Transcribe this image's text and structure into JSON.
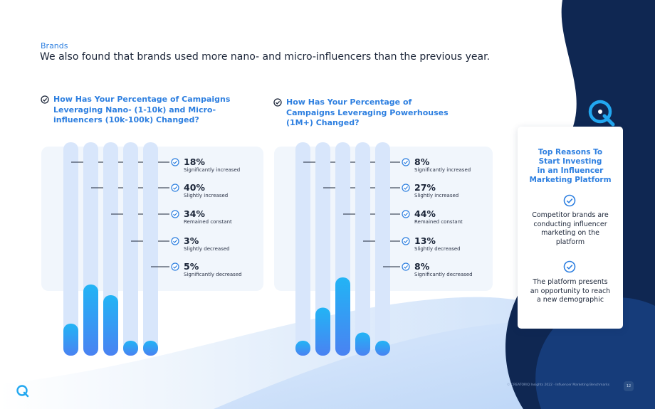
{
  "page": {
    "section_label": "Brands",
    "subtitle": "We also found that brands used more nano- and micro-influencers than the previous year.",
    "footer_text": "© CREATORIQ Insights 2022 · Influencer Marketing Benchmarks",
    "page_number": "12"
  },
  "colors": {
    "accent": "#2d7fe0",
    "navy": "#0f2752",
    "bar_gradient_top": "#22b4f5",
    "bar_gradient_bottom": "#4a82f2",
    "track": "#d8e6fb",
    "panel": "#f1f6fc"
  },
  "chart_data": [
    {
      "type": "bar",
      "title": "How Has Your Percentage of Campaigns Leveraging Nano- (1-10k) and Micro-influencers (10k-100k) Changed?",
      "categories": [
        "Significantly increased",
        "Slightly increased",
        "Remained constant",
        "Slightly decreased",
        "Significantly decreased"
      ],
      "values": [
        18,
        40,
        34,
        3,
        5
      ],
      "value_labels": [
        "18%",
        "40%",
        "34%",
        "3%",
        "5%"
      ],
      "ylim": [
        0,
        100
      ],
      "legend": "right"
    },
    {
      "type": "bar",
      "title": "How Has Your Percentage of Campaigns Leveraging Powerhouses (1M+) Changed?",
      "categories": [
        "Significantly increased",
        "Slightly increased",
        "Remained constant",
        "Slightly decreased",
        "Significantly decreased"
      ],
      "values": [
        8,
        27,
        44,
        13,
        8
      ],
      "value_labels": [
        "8%",
        "27%",
        "44%",
        "13%",
        "8%"
      ],
      "ylim": [
        0,
        100
      ],
      "legend": "right"
    }
  ],
  "card": {
    "title": "Top Reasons To Start Investing in an Influencer Marketing Platform",
    "title_lines": [
      "Top Reasons To",
      "Start Investing",
      "in an Influencer",
      "Marketing Platform"
    ],
    "reasons": [
      {
        "lines": [
          "Competitor brands are",
          "conducting influencer",
          "marketing on the",
          "platform"
        ]
      },
      {
        "lines": [
          "The platform presents",
          "an opportunity to reach",
          "a new demographic"
        ]
      }
    ]
  },
  "icons": {
    "check": "check-circle-icon",
    "logo": "creatoriq-logo-icon"
  }
}
